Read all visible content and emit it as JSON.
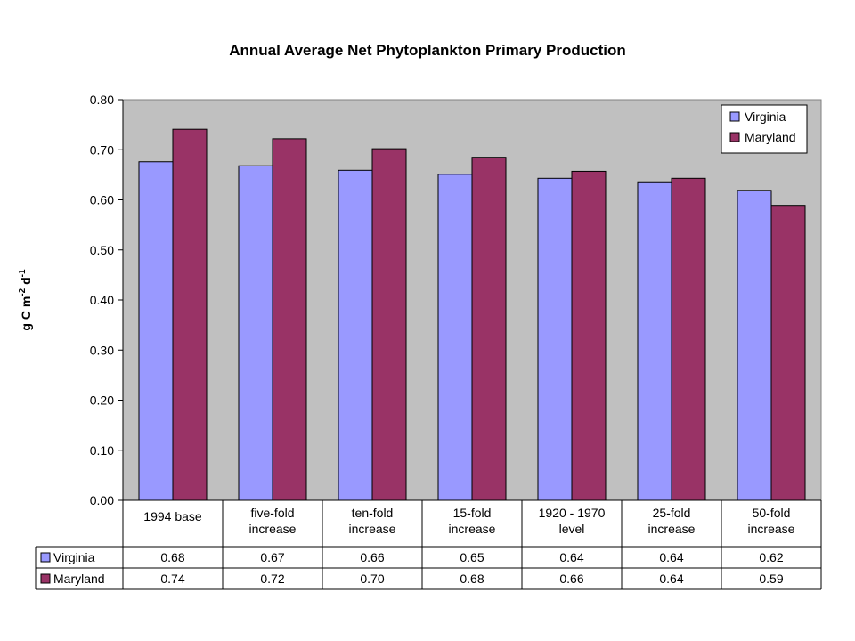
{
  "chart_data": {
    "type": "bar",
    "title": "Annual Average Net Phytoplankton Primary Production",
    "ylabel": {
      "parts": [
        "g C m",
        "-2",
        " d",
        "-1"
      ]
    },
    "ylim": [
      0,
      0.8
    ],
    "yticks": [
      "0.00",
      "0.10",
      "0.20",
      "0.30",
      "0.40",
      "0.50",
      "0.60",
      "0.70",
      "0.80"
    ],
    "grid": false,
    "legend_position": "top-right",
    "categories": [
      [
        "1994 base"
      ],
      [
        "five-fold",
        "increase"
      ],
      [
        "ten-fold",
        "increase"
      ],
      [
        "15-fold",
        "increase"
      ],
      [
        "1920 - 1970",
        "level"
      ],
      [
        "25-fold",
        "increase"
      ],
      [
        "50-fold",
        "increase"
      ]
    ],
    "series": [
      {
        "name": "Virginia",
        "color": "#9999ff",
        "values": [
          0.676,
          0.668,
          0.659,
          0.651,
          0.643,
          0.636,
          0.619
        ],
        "table_labels": [
          "0.68",
          "0.67",
          "0.66",
          "0.65",
          "0.64",
          "0.64",
          "0.62"
        ]
      },
      {
        "name": "Maryland",
        "color": "#993366",
        "values": [
          0.741,
          0.722,
          0.702,
          0.685,
          0.657,
          0.643,
          0.589
        ],
        "table_labels": [
          "0.74",
          "0.72",
          "0.70",
          "0.68",
          "0.66",
          "0.64",
          "0.59"
        ]
      }
    ],
    "plot_background": "#c0c0c0"
  }
}
